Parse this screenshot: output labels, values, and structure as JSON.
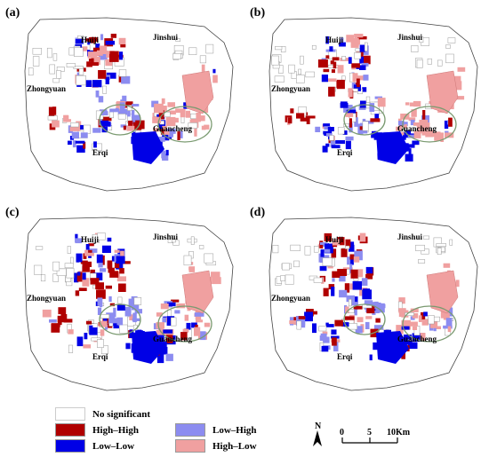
{
  "panels": [
    {
      "label": "(a)",
      "districts": [
        "Huiji",
        "Jinshui",
        "Zhongyuan",
        "Guancheng",
        "Erqi"
      ]
    },
    {
      "label": "(b)",
      "districts": [
        "Huiji",
        "Jinshui",
        "Zhongyuan",
        "Guancheng",
        "Erqi"
      ]
    },
    {
      "label": "(c)",
      "districts": [
        "Huiji",
        "Jinshui",
        "Zhongyuan",
        "Guancheng",
        "Erqi"
      ]
    },
    {
      "label": "(d)",
      "districts": [
        "Huiji",
        "Jinshui",
        "Zhongyuan",
        "Guancheng",
        "Erqi"
      ]
    }
  ],
  "legend": {
    "no_significant": "No significant",
    "high_high": "High–High",
    "low_low": "Low–Low",
    "low_high": "Low–High",
    "high_low": "High–Low"
  },
  "colors": {
    "no_significant": "#ffffff",
    "high_high": "#b00000",
    "low_low": "#0000e6",
    "low_high": "#8c8cf0",
    "high_low": "#f0a0a0"
  },
  "north_label": "N",
  "scale": {
    "ticks": [
      "0",
      "5",
      "10Km"
    ]
  }
}
